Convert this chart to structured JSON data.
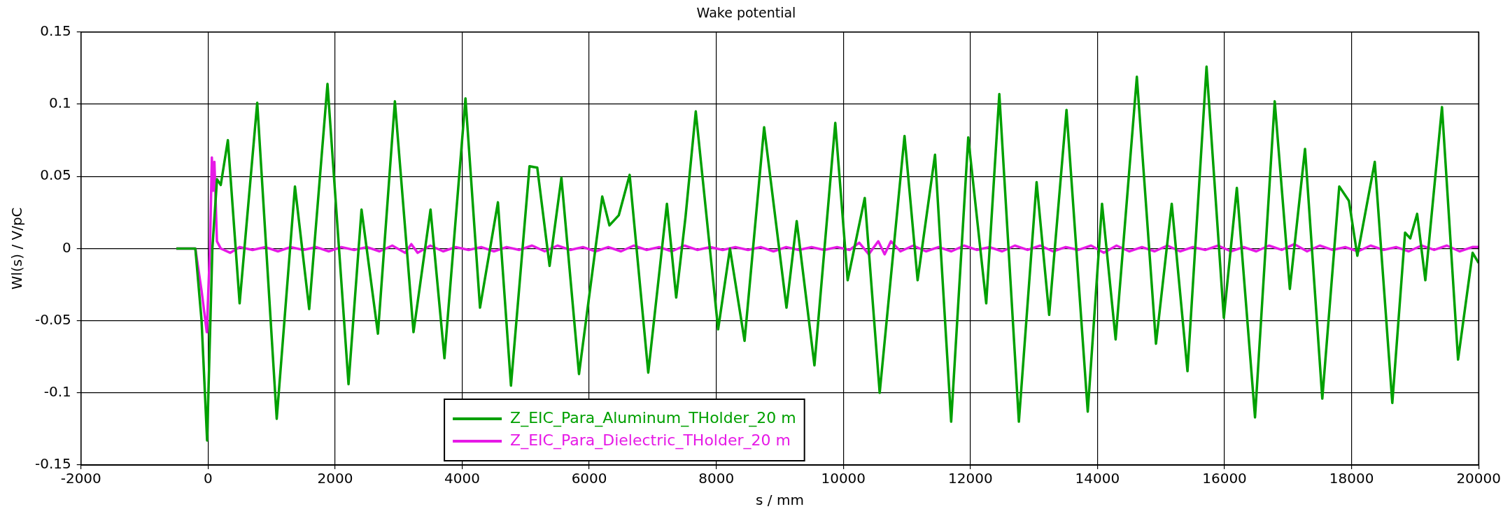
{
  "chart_data": {
    "type": "line",
    "title": "Wake potential",
    "xlabel": "s / mm",
    "ylabel": "Wl(s) / V/pC",
    "xlim": [
      -2000,
      20000
    ],
    "xticks": [
      -2000,
      0,
      2000,
      4000,
      6000,
      8000,
      10000,
      12000,
      14000,
      16000,
      18000,
      20000
    ],
    "ylim": [
      -0.15,
      0.15
    ],
    "yticks": [
      -0.15,
      -0.1,
      -0.05,
      0,
      0.05,
      0.1,
      0.15
    ],
    "grid": true,
    "legend": "bottom",
    "marker": "none",
    "line_style": "solid",
    "series": [
      {
        "name": "Z_EIC_Para_Aluminum_THolder_20 m",
        "color": "#00a000",
        "x": [
          -500,
          -200,
          -102,
          -15,
          68,
          141,
          200,
          312,
          497,
          774,
          1081,
          1368,
          1592,
          1880,
          2211,
          2416,
          2674,
          2941,
          3234,
          3502,
          3721,
          4052,
          4281,
          4563,
          4768,
          5060,
          5182,
          5376,
          5562,
          5839,
          6205,
          6318,
          6465,
          6636,
          6929,
          7223,
          7369,
          7516,
          7677,
          8029,
          8215,
          8445,
          8753,
          9105,
          9266,
          9545,
          9873,
          10068,
          10337,
          10572,
          10963,
          11169,
          11443,
          11697,
          11966,
          12249,
          12455,
          12763,
          13042,
          13240,
          13513,
          13847,
          14072,
          14286,
          14620,
          14921,
          15169,
          15417,
          15717,
          15989,
          16194,
          16480,
          16790,
          17028,
          17267,
          17539,
          17806,
          17958,
          18091,
          18365,
          18641,
          18842,
          18923,
          19032,
          19161,
          19423,
          19676,
          19905,
          20000
        ],
        "values": [
          0,
          0,
          -0.05,
          -0.133,
          0,
          0.048,
          0.044,
          0.075,
          -0.038,
          0.101,
          -0.118,
          0.043,
          -0.042,
          0.114,
          -0.094,
          0.027,
          -0.059,
          0.102,
          -0.058,
          0.027,
          -0.076,
          0.104,
          -0.041,
          0.032,
          -0.095,
          0.057,
          0.056,
          -0.012,
          0.049,
          -0.087,
          0.036,
          0.016,
          0.023,
          0.051,
          -0.086,
          0.031,
          -0.034,
          0.022,
          0.095,
          -0.056,
          0,
          -0.064,
          0.084,
          -0.041,
          0.019,
          -0.081,
          0.087,
          -0.022,
          0.035,
          -0.1,
          0.078,
          -0.022,
          0.065,
          -0.12,
          0.077,
          -0.038,
          0.107,
          -0.12,
          0.046,
          -0.046,
          0.096,
          -0.113,
          0.031,
          -0.063,
          0.119,
          -0.066,
          0.031,
          -0.085,
          0.126,
          -0.048,
          0.042,
          -0.117,
          0.102,
          -0.028,
          0.069,
          -0.104,
          0.043,
          0.033,
          -0.005,
          0.06,
          -0.107,
          0.011,
          0.007,
          0.024,
          -0.022,
          0.098,
          -0.077,
          -0.003,
          -0.01
        ]
      },
      {
        "name": "Z_EIC_Para_Dielectric_THolder_20 m",
        "color": "#e619e6",
        "x": [
          -500,
          -200,
          -100,
          -20,
          30,
          60,
          80,
          100,
          140,
          200,
          350,
          500,
          700,
          900,
          1100,
          1300,
          1500,
          1700,
          1900,
          2100,
          2300,
          2500,
          2700,
          2900,
          3100,
          3200,
          3300,
          3500,
          3700,
          3900,
          4100,
          4300,
          4500,
          4700,
          4900,
          5100,
          5300,
          5500,
          5700,
          5900,
          6100,
          6300,
          6500,
          6700,
          6900,
          7100,
          7300,
          7500,
          7700,
          7900,
          8100,
          8300,
          8500,
          8700,
          8900,
          9100,
          9300,
          9500,
          9700,
          9900,
          10100,
          10250,
          10400,
          10550,
          10650,
          10750,
          10900,
          11100,
          11300,
          11500,
          11700,
          11900,
          12100,
          12300,
          12500,
          12700,
          12900,
          13100,
          13300,
          13500,
          13700,
          13900,
          14100,
          14300,
          14500,
          14700,
          14900,
          15100,
          15300,
          15500,
          15700,
          15900,
          16100,
          16300,
          16500,
          16700,
          16900,
          17100,
          17300,
          17500,
          17700,
          17900,
          18100,
          18300,
          18500,
          18700,
          18900,
          19100,
          19300,
          19500,
          19700,
          19900,
          20000
        ],
        "values": [
          0,
          0,
          -0.03,
          -0.058,
          0,
          0.063,
          0.04,
          0.06,
          0.005,
          0,
          -0.003,
          0.001,
          -0.001,
          0.001,
          -0.002,
          0.001,
          -0.001,
          0.001,
          -0.002,
          0.001,
          -0.001,
          0.001,
          -0.002,
          0.002,
          -0.003,
          0.003,
          -0.003,
          0.002,
          -0.002,
          0.001,
          -0.001,
          0.001,
          -0.002,
          0.001,
          -0.001,
          0.002,
          -0.002,
          0.002,
          -0.001,
          0.001,
          -0.002,
          0.001,
          -0.002,
          0.002,
          -0.001,
          0.001,
          -0.002,
          0.002,
          -0.001,
          0.001,
          -0.001,
          0.001,
          -0.001,
          0.001,
          -0.002,
          0.001,
          -0.001,
          0.001,
          -0.001,
          0.001,
          -0.001,
          0.004,
          -0.004,
          0.005,
          -0.004,
          0.005,
          -0.002,
          0.002,
          -0.002,
          0.001,
          -0.002,
          0.002,
          -0.001,
          0.001,
          -0.002,
          0.002,
          -0.001,
          0.002,
          -0.002,
          0.001,
          -0.001,
          0.002,
          -0.003,
          0.002,
          -0.002,
          0.001,
          -0.002,
          0.002,
          -0.002,
          0.001,
          -0.001,
          0.002,
          -0.002,
          0.001,
          -0.002,
          0.002,
          -0.001,
          0.003,
          -0.002,
          0.002,
          -0.001,
          0.001,
          -0.002,
          0.002,
          -0.001,
          0.001,
          -0.002,
          0.002,
          -0.001,
          0.002,
          -0.002,
          0.001,
          0.001
        ]
      }
    ]
  }
}
